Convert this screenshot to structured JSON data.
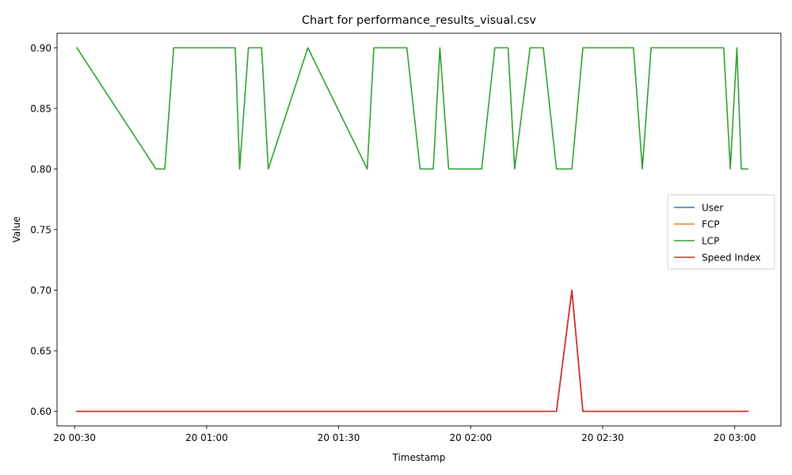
{
  "chart_data": {
    "type": "line",
    "title": "Chart for performance_results_visual.csv",
    "xlabel": "Timestamp",
    "ylabel": "Value",
    "xlim": [
      "2024-01-20 00:26:00",
      "2024-01-20 03:10:30"
    ],
    "ylim": [
      0.588,
      0.912
    ],
    "x_ticks": [
      {
        "t": "2024-01-20 00:30:00",
        "label": "20 00:30"
      },
      {
        "t": "2024-01-20 01:00:00",
        "label": "20 01:00"
      },
      {
        "t": "2024-01-20 01:30:00",
        "label": "20 01:30"
      },
      {
        "t": "2024-01-20 02:00:00",
        "label": "20 02:00"
      },
      {
        "t": "2024-01-20 02:30:00",
        "label": "20 02:30"
      },
      {
        "t": "2024-01-20 03:00:00",
        "label": "20 03:00"
      }
    ],
    "y_ticks": [
      {
        "v": 0.6,
        "label": "0.60"
      },
      {
        "v": 0.65,
        "label": "0.65"
      },
      {
        "v": 0.7,
        "label": "0.70"
      },
      {
        "v": 0.75,
        "label": "0.75"
      },
      {
        "v": 0.8,
        "label": "0.80"
      },
      {
        "v": 0.85,
        "label": "0.85"
      },
      {
        "v": 0.9,
        "label": "0.90"
      }
    ],
    "grid": false,
    "legend_position": "center-right",
    "series": [
      {
        "name": "User",
        "color": "#1f77b4",
        "x": [
          "2024-01-20 00:30:30",
          "2024-01-20 02:19:30",
          "2024-01-20 02:23:00",
          "2024-01-20 02:25:30",
          "2024-01-20 03:03:00"
        ],
        "y": [
          0.6,
          0.6,
          0.7,
          0.6,
          0.6
        ]
      },
      {
        "name": "FCP",
        "color": "#ff7f0e",
        "x": [
          "2024-01-20 00:30:30",
          "2024-01-20 02:19:30",
          "2024-01-20 02:23:00",
          "2024-01-20 02:25:30",
          "2024-01-20 03:03:00"
        ],
        "y": [
          0.6,
          0.6,
          0.7,
          0.6,
          0.6
        ]
      },
      {
        "name": "LCP",
        "color": "#2ca02c",
        "x": [
          "2024-01-20 00:30:30",
          "2024-01-20 00:48:30",
          "2024-01-20 00:50:30",
          "2024-01-20 00:52:30",
          "2024-01-20 01:06:30",
          "2024-01-20 01:07:30",
          "2024-01-20 01:09:30",
          "2024-01-20 01:12:30",
          "2024-01-20 01:14:00",
          "2024-01-20 01:23:00",
          "2024-01-20 01:36:30",
          "2024-01-20 01:38:00",
          "2024-01-20 01:45:30",
          "2024-01-20 01:48:30",
          "2024-01-20 01:51:30",
          "2024-01-20 01:53:00",
          "2024-01-20 01:55:00",
          "2024-01-20 02:02:30",
          "2024-01-20 02:05:30",
          "2024-01-20 02:08:30",
          "2024-01-20 02:10:00",
          "2024-01-20 02:13:30",
          "2024-01-20 02:16:30",
          "2024-01-20 02:19:30",
          "2024-01-20 02:23:00",
          "2024-01-20 02:25:30",
          "2024-01-20 02:37:00",
          "2024-01-20 02:39:00",
          "2024-01-20 02:41:00",
          "2024-01-20 02:57:30",
          "2024-01-20 02:59:00",
          "2024-01-20 03:00:30",
          "2024-01-20 03:01:30",
          "2024-01-20 03:03:00"
        ],
        "y": [
          0.9,
          0.8,
          0.8,
          0.9,
          0.9,
          0.8,
          0.9,
          0.9,
          0.8,
          0.9,
          0.8,
          0.9,
          0.9,
          0.8,
          0.8,
          0.9,
          0.8,
          0.8,
          0.9,
          0.9,
          0.8,
          0.9,
          0.9,
          0.8,
          0.8,
          0.9,
          0.9,
          0.8,
          0.9,
          0.9,
          0.8,
          0.9,
          0.8,
          0.8
        ]
      },
      {
        "name": "Speed Index",
        "color": "#d62728",
        "x": [
          "2024-01-20 00:30:30",
          "2024-01-20 02:19:30",
          "2024-01-20 02:23:00",
          "2024-01-20 02:25:30",
          "2024-01-20 03:03:00"
        ],
        "y": [
          0.6,
          0.6,
          0.7,
          0.6,
          0.6
        ]
      }
    ]
  }
}
